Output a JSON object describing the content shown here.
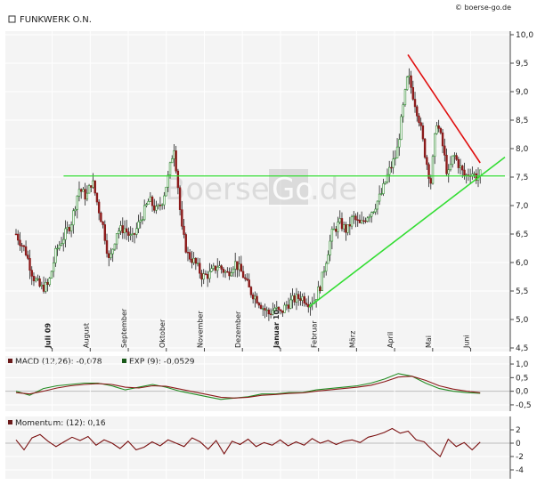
{
  "header": {
    "title": "FUNKWERK O.N.",
    "credit": "© boerse-go.de",
    "watermark_left": "Boerse",
    "watermark_right": ".de",
    "watermark_box": "Go"
  },
  "colors": {
    "candle_up": "#2e8b2e",
    "candle_down": "#8b1a1a",
    "support_line": "#33dd33",
    "resistance_line": "#e01010",
    "macd_line": "#228b22",
    "signal_line": "#8b1a1a",
    "momentum_line": "#7a1010",
    "panel_bg": "#f4f4f4",
    "grid": "#ffffff",
    "watermark_box": "#c8c8c8"
  },
  "chart_data": [
    {
      "type": "candlestick",
      "title": "FUNKWERK O.N.",
      "months": [
        {
          "label": "Juli 09",
          "bold": true,
          "x": 0
        },
        {
          "label": "August",
          "bold": false,
          "x": 1
        },
        {
          "label": "September",
          "bold": false,
          "x": 2
        },
        {
          "label": "Oktober",
          "bold": false,
          "x": 3
        },
        {
          "label": "November",
          "bold": false,
          "x": 4
        },
        {
          "label": "Dezember",
          "bold": false,
          "x": 5
        },
        {
          "label": "Januar 10",
          "bold": true,
          "x": 6
        },
        {
          "label": "Februar",
          "bold": false,
          "x": 7
        },
        {
          "label": "März",
          "bold": false,
          "x": 8
        },
        {
          "label": "April",
          "bold": false,
          "x": 9
        },
        {
          "label": "Mai",
          "bold": false,
          "x": 10
        },
        {
          "label": "Juni",
          "bold": false,
          "x": 11
        }
      ],
      "x_range": [
        -0.95,
        11.9
      ],
      "ylim": [
        4.5,
        10.0
      ],
      "yticks": [
        "4,5",
        "5,0",
        "5,5",
        "6,0",
        "6,5",
        "7,0",
        "7,5",
        "8,0",
        "8,5",
        "9,0",
        "9,5",
        "10,0"
      ],
      "ytick_values": [
        4.5,
        5.0,
        5.5,
        6.0,
        6.5,
        7.0,
        7.5,
        8.0,
        8.5,
        9.0,
        9.5,
        10.0
      ],
      "price_path": [
        [
          -0.95,
          6.5
        ],
        [
          -0.7,
          6.2
        ],
        [
          -0.5,
          5.75
        ],
        [
          -0.3,
          5.55
        ],
        [
          -0.1,
          5.6
        ],
        [
          0.1,
          6.2
        ],
        [
          0.3,
          6.45
        ],
        [
          0.5,
          6.7
        ],
        [
          0.7,
          7.3
        ],
        [
          0.9,
          7.15
        ],
        [
          1.05,
          7.45
        ],
        [
          1.2,
          7.0
        ],
        [
          1.35,
          6.6
        ],
        [
          1.5,
          6.0
        ],
        [
          1.7,
          6.55
        ],
        [
          1.9,
          6.6
        ],
        [
          2.1,
          6.4
        ],
        [
          2.35,
          6.8
        ],
        [
          2.55,
          7.1
        ],
        [
          2.75,
          6.9
        ],
        [
          2.9,
          7.1
        ],
        [
          3.05,
          7.5
        ],
        [
          3.2,
          8.05
        ],
        [
          3.3,
          7.4
        ],
        [
          3.4,
          6.6
        ],
        [
          3.55,
          6.15
        ],
        [
          3.75,
          6.0
        ],
        [
          3.95,
          5.75
        ],
        [
          4.15,
          5.8
        ],
        [
          4.35,
          5.95
        ],
        [
          4.6,
          5.8
        ],
        [
          4.8,
          6.0
        ],
        [
          5.0,
          5.8
        ],
        [
          5.2,
          5.5
        ],
        [
          5.4,
          5.35
        ],
        [
          5.55,
          5.2
        ],
        [
          5.7,
          5.1
        ],
        [
          5.85,
          5.2
        ],
        [
          6.0,
          5.1
        ],
        [
          6.15,
          5.25
        ],
        [
          6.35,
          5.35
        ],
        [
          6.55,
          5.4
        ],
        [
          6.75,
          5.3
        ],
        [
          6.9,
          5.35
        ],
        [
          7.05,
          5.6
        ],
        [
          7.2,
          6.05
        ],
        [
          7.35,
          6.5
        ],
        [
          7.55,
          6.7
        ],
        [
          7.75,
          6.55
        ],
        [
          7.9,
          6.8
        ],
        [
          8.1,
          6.65
        ],
        [
          8.25,
          6.8
        ],
        [
          8.45,
          6.95
        ],
        [
          8.65,
          7.2
        ],
        [
          8.85,
          7.6
        ],
        [
          9.05,
          7.9
        ],
        [
          9.2,
          8.6
        ],
        [
          9.35,
          9.3
        ],
        [
          9.5,
          8.9
        ],
        [
          9.65,
          8.5
        ],
        [
          9.8,
          7.9
        ],
        [
          9.95,
          7.4
        ],
        [
          10.1,
          8.5
        ],
        [
          10.25,
          8.1
        ],
        [
          10.4,
          7.5
        ],
        [
          10.55,
          7.9
        ],
        [
          10.7,
          7.7
        ],
        [
          10.85,
          7.5
        ],
        [
          11.0,
          7.6
        ],
        [
          11.15,
          7.5
        ],
        [
          11.25,
          7.55
        ]
      ],
      "support_line": {
        "from": [
          6.75,
          5.22
        ],
        "to": [
          11.9,
          7.85
        ]
      },
      "horizontal_line": {
        "from": [
          0.3,
          7.52
        ],
        "to": [
          11.9,
          7.52
        ]
      },
      "resistance_line": {
        "from": [
          9.35,
          9.65
        ],
        "to": [
          11.25,
          7.75
        ]
      }
    },
    {
      "type": "line",
      "title": "MACD (12,26): -0,078",
      "series": [
        {
          "name": "MACD (12,26): -0,078",
          "color_key": "macd_line",
          "values": [
            0.0,
            -0.15,
            0.1,
            0.2,
            0.25,
            0.3,
            0.3,
            0.2,
            0.05,
            0.15,
            0.25,
            0.15,
            0.0,
            -0.1,
            -0.2,
            -0.3,
            -0.25,
            -0.2,
            -0.1,
            -0.1,
            -0.05,
            -0.05,
            0.05,
            0.1,
            0.15,
            0.2,
            0.3,
            0.45,
            0.65,
            0.55,
            0.3,
            0.1,
            0.0,
            -0.05,
            -0.078
          ]
        },
        {
          "name": "EXP (9): -0,0529",
          "color_key": "signal_line",
          "values": [
            -0.05,
            -0.1,
            0.0,
            0.12,
            0.2,
            0.25,
            0.28,
            0.25,
            0.15,
            0.12,
            0.2,
            0.18,
            0.08,
            -0.02,
            -0.12,
            -0.22,
            -0.25,
            -0.22,
            -0.15,
            -0.12,
            -0.08,
            -0.06,
            0.0,
            0.05,
            0.1,
            0.15,
            0.22,
            0.35,
            0.52,
            0.55,
            0.4,
            0.2,
            0.08,
            0.0,
            -0.0529
          ]
        }
      ],
      "ylim": [
        -0.6,
        1.1
      ],
      "yticks": [
        "1,0",
        "0,5",
        "0,0",
        "-0,5"
      ],
      "ytick_values": [
        1.0,
        0.5,
        0.0,
        -0.5
      ]
    },
    {
      "type": "line",
      "title": "Momentum: (12): 0,16",
      "series": [
        {
          "name": "Momentum: (12): 0,16",
          "color_key": "momentum_line",
          "values": [
            0.5,
            -1.0,
            0.8,
            1.3,
            0.3,
            -0.5,
            0.2,
            0.9,
            0.4,
            1.0,
            -0.3,
            0.5,
            0.0,
            -0.8,
            0.3,
            -1.0,
            -0.6,
            0.2,
            -0.4,
            0.5,
            0.0,
            -0.5,
            0.8,
            0.2,
            -0.9,
            0.4,
            -1.6,
            0.3,
            -0.2,
            0.6,
            -0.5,
            0.1,
            -0.3,
            0.5,
            -0.4,
            0.2,
            -0.3,
            0.7,
            0.0,
            0.4,
            -0.2,
            0.3,
            0.5,
            0.1,
            0.9,
            1.2,
            1.6,
            2.2,
            1.5,
            1.8,
            0.5,
            0.2,
            -1.0,
            -2.0,
            0.6,
            -0.5,
            0.1,
            -1.0,
            0.16
          ]
        }
      ],
      "ylim": [
        -4.8,
        3.2
      ],
      "yticks": [
        "2",
        "0",
        "-2",
        "-4"
      ],
      "ytick_values": [
        2,
        0,
        -2,
        -4
      ]
    }
  ]
}
